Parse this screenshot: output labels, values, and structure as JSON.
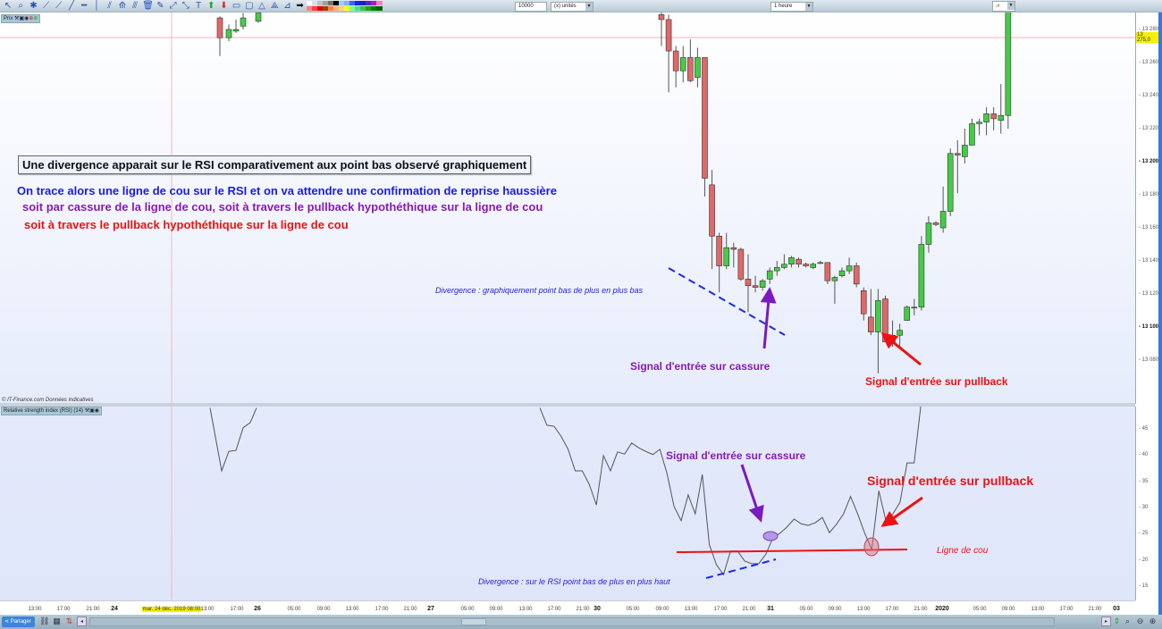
{
  "toolbar": {
    "icons": [
      "cursor-icon",
      "zoom-icon",
      "alert-bell-icon",
      "ruler-icon",
      "segment-icon",
      "line-icon",
      "horizontal-line-icon",
      "vertical-line-icon",
      "parallel-lines-icon",
      "fibonacci-icon",
      "channel-icon",
      "trash-icon",
      "eraser-icon",
      "ray-icon",
      "extended-line-icon",
      "text-icon",
      "up-arrow-icon",
      "down-arrow-icon",
      "rectangle-icon",
      "ellipse-icon",
      "triangle-icon",
      "fan-icon",
      "fibonacci-fan-icon",
      "right-arrow-icon"
    ],
    "palette_top": [
      "#ffffff",
      "#e0e0e0",
      "#c0c0c0",
      "#a0a0a0",
      "#707070",
      "#000000",
      "#a0c8ff",
      "#80b0ff",
      "#4060ff",
      "#2020e0",
      "#2020c0",
      "#6020c0",
      "#a020c0",
      "#ff80c0"
    ],
    "palette_bottom": [
      "#ff8080",
      "#ff4040",
      "#e00000",
      "#a04000",
      "#ff8040",
      "#ffb080",
      "#ffd080",
      "#ffff00",
      "#80ff80",
      "#40e0a0",
      "#40c040",
      "#20a020",
      "#008000",
      "#006000"
    ],
    "quantity_value": "10000",
    "units_value": "(x) unités",
    "timeframe_value": "1 heure"
  },
  "price_panel": {
    "tag": "Prix",
    "copyright": "© IT-Finance.com  Données indicatives",
    "current_price": "13 275,0",
    "axis_labels": [
      "13 280",
      "13 260",
      "13 240",
      "13 220",
      "13 200",
      "13 180",
      "13 160",
      "13 140",
      "13 120",
      "13 100",
      "13 080"
    ],
    "colors": {
      "up": "#44cc44",
      "down": "#e06868",
      "outline": "#333333"
    }
  },
  "rsi_panel": {
    "tag": "Relative strength index (RSI) (14)",
    "axis_labels": [
      "45",
      "40",
      "35",
      "30",
      "25",
      "20",
      "15"
    ]
  },
  "x_axis": {
    "labels": [
      "13:00",
      "17:00",
      "21:00",
      "24",
      "mar. 24 déc. 2019 08:00",
      "13:00",
      "17:00",
      "26",
      "05:00",
      "09:00",
      "13:00",
      "17:00",
      "21:00",
      "27",
      "05:00",
      "09:00",
      "13:00",
      "17:00",
      "21:00",
      "30",
      "05:00",
      "09:00",
      "13:00",
      "17:00",
      "21:00",
      "31",
      "05:00",
      "09:00",
      "13:00",
      "17:00",
      "21:00",
      "2020",
      "05:00",
      "09:00",
      "13:00",
      "17:00",
      "21:00",
      "03"
    ]
  },
  "bottom_bar": {
    "share_label": "Partager"
  },
  "annotations": {
    "headline": "Une divergence apparait sur le RSI comparativement aux point bas observé graphiquement",
    "line1": "On trace alors une ligne de cou sur le RSI et on va attendre une confirmation de reprise haussière",
    "line2": "soit par cassure de la ligne de cou, soit à travers le pullback hypothéthique sur la ligne de cou",
    "line3": "soit à travers le pullback hypothéthique sur la ligne de cou",
    "price_divergence": "Divergence : graphiquement point bas de plus en plus bas",
    "price_signal_break": "Signal d'entrée sur cassure",
    "price_signal_pullback": "Signal d'entrée sur pullback",
    "rsi_signal_break": "Signal d'entrée sur cassure",
    "rsi_signal_pullback": "Signal d'entrée sur pullback",
    "neckline": "Ligne de cou",
    "rsi_divergence": "Divergence : sur le RSI point bas de plus en plus haut"
  },
  "chart_data": [
    {
      "type": "candlestick",
      "timeframe": "1 heure",
      "ylim": [
        13070,
        13290
      ],
      "first_bar": "30 déc. 2019 09:00",
      "last_bar": "1 janv. 2020 09:00",
      "ohlc": [
        [
          13289,
          13292,
          13270,
          13286
        ],
        [
          13286,
          13289,
          13242,
          13267
        ],
        [
          13267,
          13270,
          13245,
          13255
        ],
        [
          13255,
          13270,
          13248,
          13263
        ],
        [
          13263,
          13274,
          13248,
          13249
        ],
        [
          13251,
          13269,
          13245,
          13263
        ],
        [
          13263,
          13263,
          13179,
          13190
        ],
        [
          13186,
          13195,
          13135,
          13155
        ],
        [
          13155,
          13157,
          13121,
          13137
        ],
        [
          13137,
          13157,
          13135,
          13148
        ],
        [
          13148,
          13151,
          13136,
          13147
        ],
        [
          13147,
          13148,
          13128,
          13129
        ],
        [
          13129,
          13144,
          13109,
          13125
        ],
        [
          13125,
          13131,
          13121,
          13124
        ],
        [
          13124,
          13129,
          13122,
          13128
        ],
        [
          13129,
          13136,
          13126,
          13134
        ],
        [
          13134,
          13140,
          13131,
          13136
        ],
        [
          13136,
          13144,
          13135,
          13138
        ],
        [
          13138,
          13143,
          13136,
          13142
        ],
        [
          13141,
          13142,
          13136,
          13138
        ],
        [
          13138,
          13139,
          13136,
          13137
        ],
        [
          13136,
          13139,
          13135,
          13138
        ],
        [
          13139,
          13140,
          13138,
          13139
        ],
        [
          13139,
          13139,
          13126,
          13128
        ],
        [
          13128,
          13131,
          13114,
          13130
        ],
        [
          13131,
          13136,
          13130,
          13134
        ],
        [
          13134,
          13142,
          13132,
          13137
        ],
        [
          13137,
          13139,
          13124,
          13126
        ],
        [
          13122,
          13124,
          13104,
          13108
        ],
        [
          13106,
          13123,
          13095,
          13097
        ],
        [
          13097,
          13123,
          13072,
          13116
        ],
        [
          13117,
          13119,
          13091,
          13091
        ],
        [
          13091,
          13104,
          13088,
          13095
        ],
        [
          13095,
          13102,
          13088,
          13098
        ],
        [
          13104,
          13113,
          13104,
          13112
        ],
        [
          13112,
          13117,
          13107,
          13112
        ],
        [
          13112,
          13155,
          13110,
          13150
        ],
        [
          13150,
          13167,
          13145,
          13163
        ],
        [
          13163,
          13164,
          13161,
          13162
        ],
        [
          13160,
          13185,
          13157,
          13170
        ],
        [
          13170,
          13208,
          13167,
          13205
        ],
        [
          13205,
          13213,
          13181,
          13204
        ],
        [
          13203,
          13220,
          13199,
          13210
        ],
        [
          13210,
          13226,
          13210,
          13223
        ],
        [
          13223,
          13226,
          13216,
          13224
        ],
        [
          13224,
          13233,
          13216,
          13229
        ],
        [
          13229,
          13233,
          13219,
          13226
        ],
        [
          13225,
          13247,
          13217,
          13228
        ],
        [
          13228,
          13300,
          13220,
          13300
        ]
      ],
      "earlier_ohlc": [
        [
          13287,
          13288,
          13264,
          13275
        ],
        [
          13275,
          13283,
          13273,
          13280
        ],
        [
          13279,
          13286,
          13278,
          13280
        ],
        [
          13282,
          13290,
          13280,
          13287
        ],
        [
          13285,
          13290,
          13284,
          13290
        ]
      ]
    },
    {
      "type": "line",
      "name": "Relative strength index (RSI) (14)",
      "ylim": [
        12,
        49
      ],
      "values": [
        49,
        45.7,
        45.5,
        43.6,
        41.1,
        37.0,
        37.0,
        34.4,
        30.5,
        39.9,
        37.0,
        40.6,
        40.2,
        42.3,
        41.4,
        40.7,
        40.1,
        41.1,
        36.5,
        30.2,
        27.5,
        32.4,
        28.8,
        36.3,
        22.9,
        19.1,
        17.2,
        21.7,
        21.7,
        19.8,
        19.3,
        19.3,
        21.1,
        24.2,
        25.1,
        26.3,
        27.8,
        26.9,
        26.6,
        27.1,
        28.1,
        25.2,
        26.8,
        28.8,
        32.1,
        28.8,
        25.1,
        22.0,
        33.2,
        27.5,
        28.8,
        31.0,
        38.5,
        38.5,
        50
      ],
      "earlier_values": [
        49,
        37.0,
        40.7,
        40.9,
        45.2,
        46.2,
        49
      ],
      "neckline_level": 21.5
    }
  ]
}
